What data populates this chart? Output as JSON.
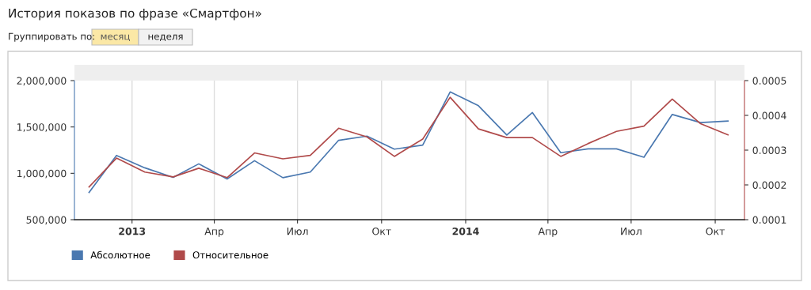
{
  "chart_data": {
    "type": "line",
    "title": "История показов по фразе «Смартфон»",
    "annotations": [
      "Группировать по:",
      "месяц",
      "неделя"
    ],
    "x": [
      "2012-11-15",
      "2012-12-15",
      "2013-01-15",
      "2013-02-15",
      "2013-03-15",
      "2013-04-15",
      "2013-05-15",
      "2013-06-15",
      "2013-07-15",
      "2013-08-15",
      "2013-09-15",
      "2013-10-15",
      "2013-11-15",
      "2013-12-15",
      "2014-01-15",
      "2014-02-15",
      "2014-03-15",
      "2014-04-15",
      "2014-05-15",
      "2014-06-15",
      "2014-07-15",
      "2014-08-15",
      "2014-09-15",
      "2014-10-15"
    ],
    "series": [
      {
        "name": "Абсолютное",
        "color": "#4a78b0",
        "values": [
          794000,
          1193000,
          1059000,
          956000,
          1102000,
          939000,
          1136000,
          953000,
          1013000,
          1356000,
          1401000,
          1261000,
          1304000,
          1878000,
          1729000,
          1413000,
          1655000,
          1222000,
          1264000,
          1264000,
          1173000,
          1635000,
          1547000,
          1564000
        ]
      },
      {
        "name": "Относительное",
        "color": "#b04a4a",
        "axis": "y2",
        "values": [
          0.000194,
          0.000277,
          0.000237,
          0.000223,
          0.000248,
          0.000221,
          0.000292,
          0.000275,
          0.000285,
          0.000363,
          0.000338,
          0.000282,
          0.000332,
          0.000452,
          0.000361,
          0.000336,
          0.000336,
          0.000282,
          0.000319,
          0.000354,
          0.000369,
          0.000447,
          0.000376,
          0.000344
        ]
      }
    ],
    "xlim": [
      "2012-10-30",
      "2014-11-02"
    ],
    "xticks": [
      {
        "value": "2013-01-01",
        "label": "2013"
      },
      {
        "value": "2013-04-01",
        "label": "Апр"
      },
      {
        "value": "2013-07-01",
        "label": "Июл"
      },
      {
        "value": "2013-10-01",
        "label": "Окт"
      },
      {
        "value": "2014-01-01",
        "label": "2014"
      },
      {
        "value": "2014-04-01",
        "label": "Апр"
      },
      {
        "value": "2014-07-01",
        "label": "Июл"
      },
      {
        "value": "2014-10-01",
        "label": "Окт"
      }
    ],
    "ylim": [
      500000,
      2000000
    ],
    "yticks": [
      {
        "value": 500000,
        "label": "500,000"
      },
      {
        "value": 1000000,
        "label": "1,000,000"
      },
      {
        "value": 1500000,
        "label": "1,500,000"
      },
      {
        "value": 2000000,
        "label": "2,000,000"
      }
    ],
    "y2lim": [
      0.0001,
      0.0005
    ],
    "y2ticks": [
      0.0001,
      0.0002,
      0.0003,
      0.0004,
      0.0005
    ],
    "grid": "x",
    "legend": "bottom left",
    "marker": "none",
    "line_style": "solid"
  }
}
